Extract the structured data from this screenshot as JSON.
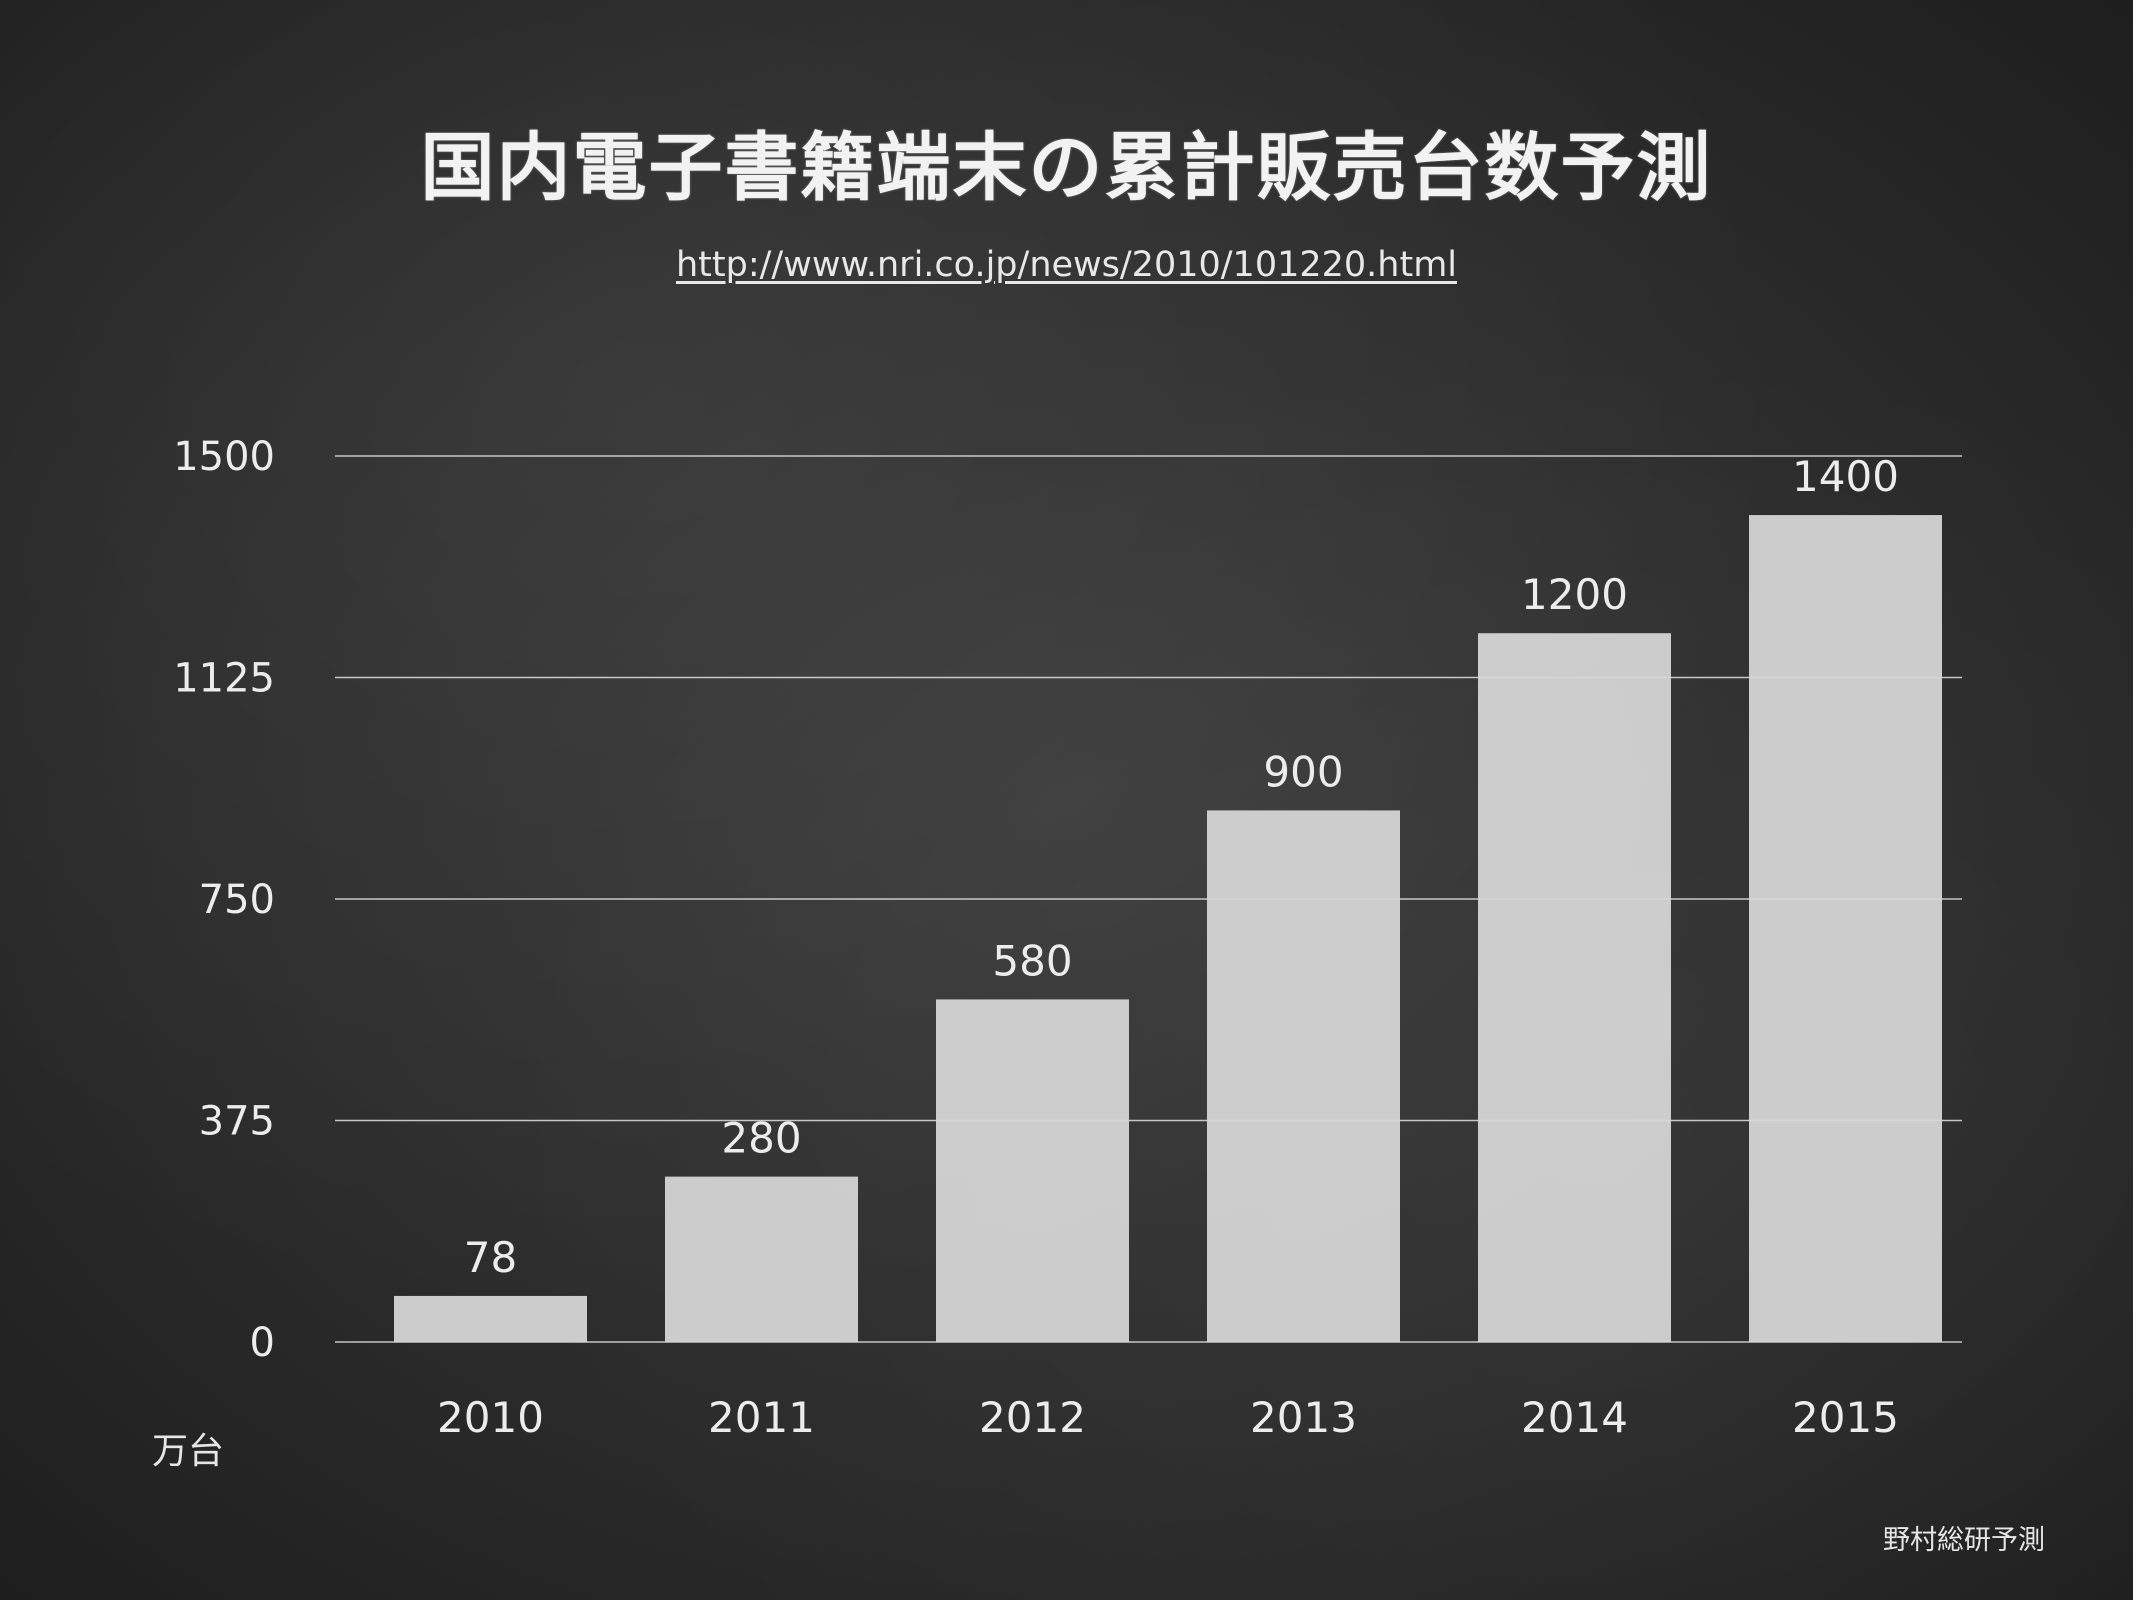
{
  "header": {
    "title": "国内電子書籍端末の累計販売台数予測",
    "source_url": "http://www.nri.co.jp/news/2010/101220.html"
  },
  "footer": {
    "credit": "野村総研予測"
  },
  "colors": {
    "background": "#2e2e2e",
    "bar": "#d8d8d8",
    "gridline": "#e0e0e0",
    "text": "#ececec"
  },
  "chart_data": {
    "type": "bar",
    "title": "国内電子書籍端末の累計販売台数予測",
    "xlabel": "",
    "ylabel": "万台",
    "categories": [
      "2010",
      "2011",
      "2012",
      "2013",
      "2014",
      "2015"
    ],
    "values": [
      78,
      280,
      580,
      900,
      1200,
      1400
    ],
    "data_labels": [
      "78",
      "280",
      "580",
      "900",
      "1200",
      "1400"
    ],
    "yticks": [
      0,
      375,
      750,
      1125,
      1500
    ],
    "ylim": [
      0,
      1500
    ],
    "grid": true,
    "legend": "none"
  }
}
